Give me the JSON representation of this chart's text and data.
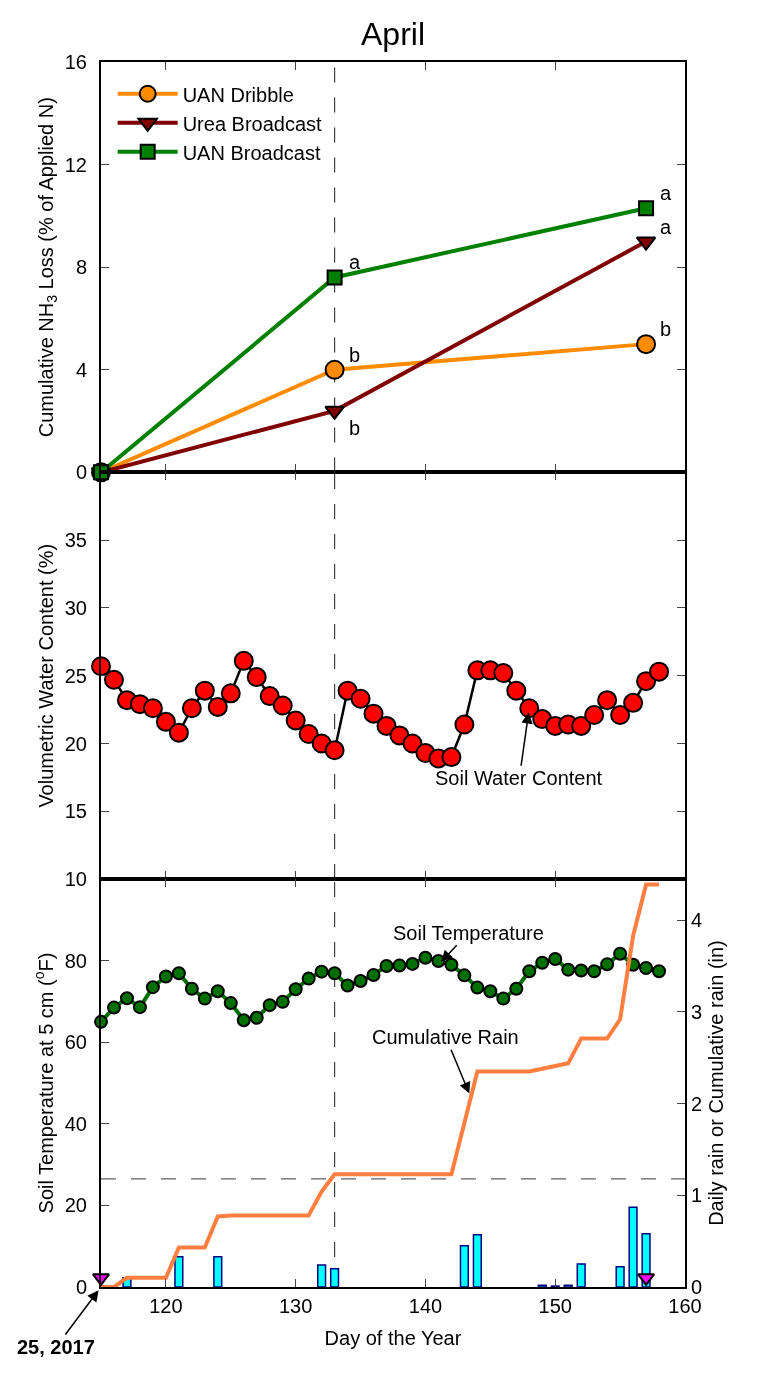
{
  "chart_data": [
    {
      "type": "line",
      "title": "April",
      "ylabel": "Cumulative NH$_{3}$ Loss (% of Applied N)",
      "xlim": [
        115,
        160
      ],
      "xticks": [
        120,
        130,
        140,
        150,
        160
      ],
      "ylim": [
        0,
        16
      ],
      "yticks": [
        0,
        4,
        8,
        12,
        16
      ],
      "tick_labels": "y",
      "legend": "top left",
      "grid": false,
      "series": [
        {
          "name": "UAN Dribble",
          "color": "#ff8c00",
          "marker": "circle",
          "x": [
            115,
            133,
            157
          ],
          "values": [
            0,
            4.0,
            5.0
          ]
        },
        {
          "name": "Urea Broadcast",
          "color": "#800000",
          "marker": "triangle",
          "x": [
            115,
            133,
            157
          ],
          "values": [
            0,
            2.4,
            9.0
          ]
        },
        {
          "name": "UAN Broadcast",
          "color": "#008000",
          "marker": "square",
          "x": [
            115,
            133,
            157
          ],
          "values": [
            0,
            7.6,
            10.3
          ]
        }
      ],
      "ref_lines": [
        {
          "axis": "x",
          "value": 133,
          "line_style": "dashed",
          "color": "#404040"
        }
      ],
      "annotations": [
        {
          "text": "a",
          "x": 133,
          "y": 7.6
        },
        {
          "text": "b",
          "x": 133,
          "y": 4.0
        },
        {
          "text": "b",
          "x": 133,
          "y": 2.4
        },
        {
          "text": "a",
          "x": 157,
          "y": 10.3
        },
        {
          "text": "a",
          "x": 157,
          "y": 9.0
        },
        {
          "text": "b",
          "x": 157,
          "y": 5.0
        }
      ]
    },
    {
      "type": "line",
      "ylabel": "Volumetric Water Content (%)",
      "xlim": [
        115,
        160
      ],
      "xticks": [
        120,
        130,
        140,
        150,
        160
      ],
      "ylim": [
        10,
        40
      ],
      "yticks": [
        10,
        15,
        20,
        25,
        30,
        35
      ],
      "tick_labels": "y",
      "grid": false,
      "series": [
        {
          "color": "#ff0000",
          "marker": "circle",
          "x": [
            115,
            116,
            117,
            118,
            119,
            120,
            121,
            122,
            123,
            124,
            125,
            126,
            127,
            128,
            129,
            130,
            131,
            132,
            133,
            134,
            135,
            136,
            137,
            138,
            139,
            140,
            141,
            142,
            143,
            144,
            145,
            146,
            147,
            148,
            149,
            150,
            151,
            152,
            153,
            154,
            155,
            156,
            157,
            158
          ],
          "values": [
            25.7,
            24.7,
            23.2,
            22.9,
            22.6,
            21.6,
            20.8,
            22.6,
            23.9,
            22.7,
            23.7,
            26.1,
            24.9,
            23.5,
            22.8,
            21.7,
            20.7,
            20.0,
            19.5,
            23.9,
            23.3,
            22.2,
            21.3,
            20.6,
            20.0,
            19.3,
            18.9,
            19.0,
            21.4,
            25.4,
            25.4,
            25.2,
            23.9,
            22.6,
            21.8,
            21.3,
            21.4,
            21.3,
            22.1,
            23.2,
            22.1,
            23.0,
            24.6,
            25.3
          ]
        }
      ],
      "ref_lines": [
        {
          "axis": "x",
          "value": 133,
          "line_style": "dashed",
          "color": "#404040"
        }
      ],
      "annotations": [
        {
          "text": "Soil Water Content",
          "x": 148,
          "y": 22.6
        }
      ]
    },
    {
      "type": "line",
      "xlabel": "Day of the Year",
      "ylabel": "Soil Temperature at 5 cm ($^{o}$F)",
      "y2label": "Daily rain or Cumulative rain (in)",
      "xlim": [
        115,
        160
      ],
      "xticks": [
        120,
        130,
        140,
        150,
        160
      ],
      "ylim": [
        0,
        100
      ],
      "yticks": [
        0,
        20,
        40,
        60,
        80
      ],
      "y2lim": [
        0,
        4.45
      ],
      "y2ticks": [
        0,
        1,
        2,
        3,
        4
      ],
      "grid": false,
      "series": [
        {
          "type": "bar",
          "axis": "y2",
          "color": "#00ffff",
          "x": [
            117,
            121,
            124,
            132,
            133,
            143,
            144,
            149,
            150,
            151,
            152,
            155,
            156,
            157
          ],
          "values": [
            0.1,
            0.33,
            0.33,
            0.24,
            0.2,
            0.45,
            0.57,
            0.02,
            0.01,
            0.02,
            0.25,
            0.22,
            0.87,
            0.58
          ]
        },
        {
          "type": "line",
          "axis": "y2",
          "color": "#ff7f40",
          "marker": "none",
          "x": [
            115,
            116,
            117,
            118,
            119,
            120,
            121,
            122,
            123,
            124,
            125,
            126,
            127,
            128,
            129,
            130,
            131,
            132,
            133,
            134,
            135,
            136,
            137,
            138,
            139,
            140,
            141,
            142,
            143,
            144,
            145,
            146,
            147,
            148,
            149,
            150,
            151,
            152,
            153,
            154,
            155,
            156,
            157,
            158
          ],
          "values": [
            0,
            0,
            0.1,
            0.1,
            0.1,
            0.1,
            0.43,
            0.43,
            0.43,
            0.77,
            0.78,
            0.78,
            0.78,
            0.78,
            0.78,
            0.78,
            0.78,
            1.04,
            1.23,
            1.23,
            1.23,
            1.23,
            1.23,
            1.23,
            1.23,
            1.23,
            1.23,
            1.23,
            1.79,
            2.35,
            2.35,
            2.35,
            2.35,
            2.35,
            2.38,
            2.41,
            2.44,
            2.71,
            2.71,
            2.71,
            2.92,
            3.83,
            4.39,
            4.39
          ]
        },
        {
          "type": "line",
          "color": "#007000",
          "marker": "circle",
          "x": [
            115,
            116,
            117,
            118,
            119,
            120,
            121,
            122,
            123,
            124,
            125,
            126,
            127,
            128,
            129,
            130,
            131,
            132,
            133,
            134,
            135,
            136,
            137,
            138,
            139,
            140,
            141,
            142,
            143,
            144,
            145,
            146,
            147,
            148,
            149,
            150,
            151,
            152,
            153,
            154,
            155,
            156,
            157,
            158
          ],
          "values": [
            65,
            68.5,
            70.8,
            68.6,
            73.5,
            76.1,
            76.9,
            73.1,
            70.7,
            72.5,
            69.6,
            65.4,
            66.0,
            69.1,
            69.9,
            73.0,
            75.6,
            77.3,
            76.9,
            73.9,
            75.0,
            76.5,
            78.7,
            78.8,
            79.2,
            80.7,
            79.9,
            79.0,
            76.4,
            73.4,
            72.5,
            70.7,
            73.1,
            77.4,
            79.5,
            80.4,
            77.8,
            77.6,
            77.4,
            79.1,
            81.7,
            79.0,
            78.2,
            77.4
          ]
        },
        {
          "type": "scatter",
          "axis": "y2",
          "color": "#ff00ff",
          "marker": "triangle",
          "x": [
            115,
            157
          ],
          "values": [
            0.1,
            0.1
          ]
        }
      ],
      "ref_lines": [
        {
          "axis": "x",
          "value": 133,
          "line_style": "dashed",
          "color": "#404040"
        },
        {
          "axis": "y",
          "value": 26.5,
          "line_style": "dashed",
          "color": "#606060"
        }
      ],
      "annotations": [
        {
          "text": "Soil Temperature",
          "x": 141,
          "y": 79
        },
        {
          "text": "Cumulative Rain",
          "x": 143.5,
          "y": 46.5
        },
        {
          "text": "25, 2017",
          "x": 115,
          "y": 0
        }
      ]
    }
  ]
}
